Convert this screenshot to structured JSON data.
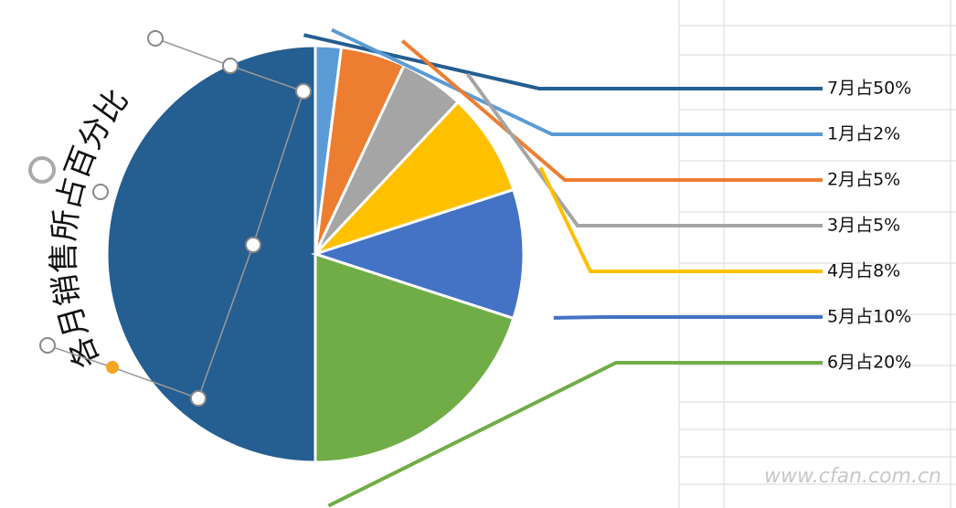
{
  "chart_data": {
    "type": "pie",
    "title": "各月销售所占百分比",
    "values": [
      50,
      2,
      5,
      5,
      8,
      10,
      20
    ],
    "value_labels": [
      "7月占50%",
      "1月占2%",
      "2月占5%",
      "3月占5%",
      "4月占8%",
      "5月占10%",
      "6月占20%"
    ],
    "colors": [
      "#255e91",
      "#5b9bd5",
      "#ed7d31",
      "#a5a5a5",
      "#ffc000",
      "#4472c4",
      "#70ad47"
    ],
    "watermark": "www.cfan.com.cn"
  }
}
